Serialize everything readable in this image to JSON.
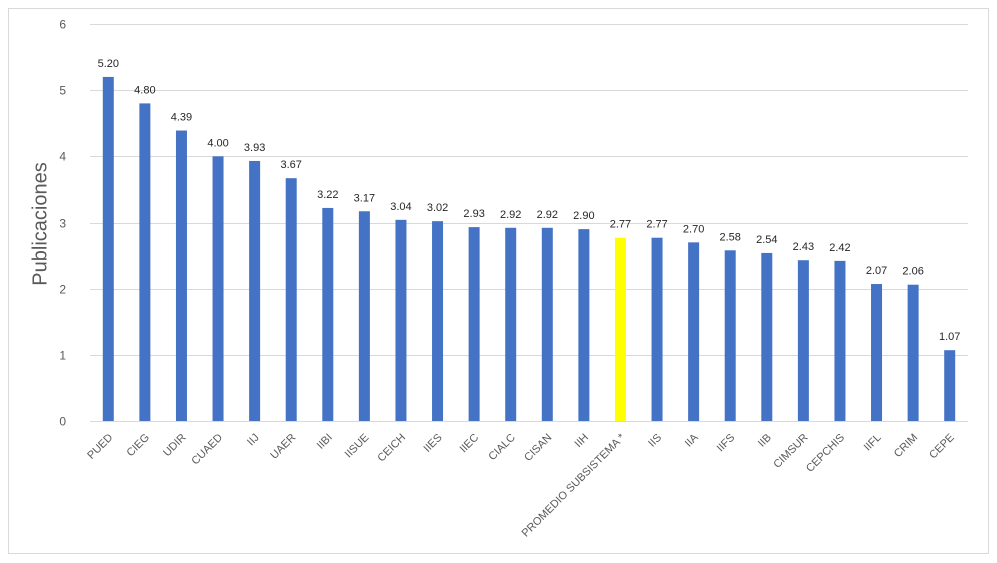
{
  "chart_data": {
    "type": "bar",
    "ylabel": "Publicaciones",
    "ylim": [
      0,
      6
    ],
    "yticks": [
      0,
      1,
      2,
      3,
      4,
      5,
      6
    ],
    "grid": true,
    "categories": [
      "PUED",
      "CIEG",
      "UDIR",
      "CUAED",
      "IIJ",
      "UAER",
      "IIBI",
      "IISUE",
      "CEICH",
      "IIES",
      "IIEC",
      "CIALC",
      "CISAN",
      "IIH",
      "PROMEDIO SUBSISTEMA *",
      "IIS",
      "IIA",
      "IIFS",
      "IIB",
      "CIMSUR",
      "CEPCHIS",
      "IIFL",
      "CRIM",
      "CEPE"
    ],
    "values": [
      5.2,
      4.8,
      4.39,
      4.0,
      3.93,
      3.67,
      3.22,
      3.17,
      3.04,
      3.02,
      2.93,
      2.92,
      2.92,
      2.9,
      2.77,
      2.77,
      2.7,
      2.58,
      2.54,
      2.43,
      2.42,
      2.07,
      2.06,
      1.07
    ],
    "data_labels": [
      "5.20",
      "4.80",
      "4.39",
      "4.00",
      "3.93",
      "3.67",
      "3.22",
      "3.17",
      "3.04",
      "3.02",
      "2.93",
      "2.92",
      "2.92",
      "2.90",
      "2.77",
      "2.77",
      "2.70",
      "2.58",
      "2.54",
      "2.43",
      "2.42",
      "2.07",
      "2.06",
      "1.07"
    ],
    "highlight_category": "PROMEDIO SUBSISTEMA *",
    "colors": {
      "bar": "#4472C4",
      "highlight": "#FFFF00",
      "grid": "#d9d9d9"
    }
  }
}
